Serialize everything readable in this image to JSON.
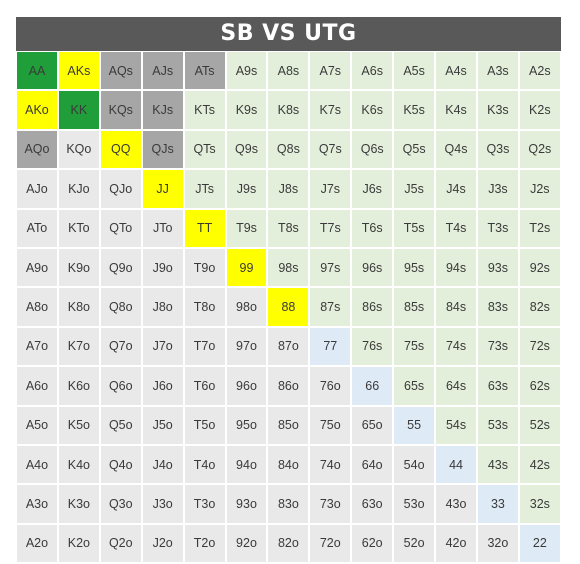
{
  "title": "SB VS UTG",
  "colors": {
    "green": "#1f9e3a",
    "yellow": "#ffff00",
    "gray": "#a6a6a6",
    "fold": "#e9e9e9",
    "suited": "#e3efdb",
    "pair": "#deebf7"
  },
  "grid": [
    [
      {
        "label": "AA",
        "color": "green"
      },
      {
        "label": "AKs",
        "color": "yellow"
      },
      {
        "label": "AQs",
        "color": "gray"
      },
      {
        "label": "AJs",
        "color": "gray"
      },
      {
        "label": "ATs",
        "color": "gray"
      },
      {
        "label": "A9s",
        "color": "suited"
      },
      {
        "label": "A8s",
        "color": "suited"
      },
      {
        "label": "A7s",
        "color": "suited"
      },
      {
        "label": "A6s",
        "color": "suited"
      },
      {
        "label": "A5s",
        "color": "suited"
      },
      {
        "label": "A4s",
        "color": "suited"
      },
      {
        "label": "A3s",
        "color": "suited"
      },
      {
        "label": "A2s",
        "color": "suited"
      }
    ],
    [
      {
        "label": "AKo",
        "color": "yellow"
      },
      {
        "label": "KK",
        "color": "green"
      },
      {
        "label": "KQs",
        "color": "gray"
      },
      {
        "label": "KJs",
        "color": "gray"
      },
      {
        "label": "KTs",
        "color": "suited"
      },
      {
        "label": "K9s",
        "color": "suited"
      },
      {
        "label": "K8s",
        "color": "suited"
      },
      {
        "label": "K7s",
        "color": "suited"
      },
      {
        "label": "K6s",
        "color": "suited"
      },
      {
        "label": "K5s",
        "color": "suited"
      },
      {
        "label": "K4s",
        "color": "suited"
      },
      {
        "label": "K3s",
        "color": "suited"
      },
      {
        "label": "K2s",
        "color": "suited"
      }
    ],
    [
      {
        "label": "AQo",
        "color": "gray"
      },
      {
        "label": "KQo",
        "color": "fold"
      },
      {
        "label": "QQ",
        "color": "yellow"
      },
      {
        "label": "QJs",
        "color": "gray"
      },
      {
        "label": "QTs",
        "color": "suited"
      },
      {
        "label": "Q9s",
        "color": "suited"
      },
      {
        "label": "Q8s",
        "color": "suited"
      },
      {
        "label": "Q7s",
        "color": "suited"
      },
      {
        "label": "Q6s",
        "color": "suited"
      },
      {
        "label": "Q5s",
        "color": "suited"
      },
      {
        "label": "Q4s",
        "color": "suited"
      },
      {
        "label": "Q3s",
        "color": "suited"
      },
      {
        "label": "Q2s",
        "color": "suited"
      }
    ],
    [
      {
        "label": "AJo",
        "color": "fold"
      },
      {
        "label": "KJo",
        "color": "fold"
      },
      {
        "label": "QJo",
        "color": "fold"
      },
      {
        "label": "JJ",
        "color": "yellow"
      },
      {
        "label": "JTs",
        "color": "suited"
      },
      {
        "label": "J9s",
        "color": "suited"
      },
      {
        "label": "J8s",
        "color": "suited"
      },
      {
        "label": "J7s",
        "color": "suited"
      },
      {
        "label": "J6s",
        "color": "suited"
      },
      {
        "label": "J5s",
        "color": "suited"
      },
      {
        "label": "J4s",
        "color": "suited"
      },
      {
        "label": "J3s",
        "color": "suited"
      },
      {
        "label": "J2s",
        "color": "suited"
      }
    ],
    [
      {
        "label": "ATo",
        "color": "fold"
      },
      {
        "label": "KTo",
        "color": "fold"
      },
      {
        "label": "QTo",
        "color": "fold"
      },
      {
        "label": "JTo",
        "color": "fold"
      },
      {
        "label": "TT",
        "color": "yellow"
      },
      {
        "label": "T9s",
        "color": "suited"
      },
      {
        "label": "T8s",
        "color": "suited"
      },
      {
        "label": "T7s",
        "color": "suited"
      },
      {
        "label": "T6s",
        "color": "suited"
      },
      {
        "label": "T5s",
        "color": "suited"
      },
      {
        "label": "T4s",
        "color": "suited"
      },
      {
        "label": "T3s",
        "color": "suited"
      },
      {
        "label": "T2s",
        "color": "suited"
      }
    ],
    [
      {
        "label": "A9o",
        "color": "fold"
      },
      {
        "label": "K9o",
        "color": "fold"
      },
      {
        "label": "Q9o",
        "color": "fold"
      },
      {
        "label": "J9o",
        "color": "fold"
      },
      {
        "label": "T9o",
        "color": "fold"
      },
      {
        "label": "99",
        "color": "yellow"
      },
      {
        "label": "98s",
        "color": "suited"
      },
      {
        "label": "97s",
        "color": "suited"
      },
      {
        "label": "96s",
        "color": "suited"
      },
      {
        "label": "95s",
        "color": "suited"
      },
      {
        "label": "94s",
        "color": "suited"
      },
      {
        "label": "93s",
        "color": "suited"
      },
      {
        "label": "92s",
        "color": "suited"
      }
    ],
    [
      {
        "label": "A8o",
        "color": "fold"
      },
      {
        "label": "K8o",
        "color": "fold"
      },
      {
        "label": "Q8o",
        "color": "fold"
      },
      {
        "label": "J8o",
        "color": "fold"
      },
      {
        "label": "T8o",
        "color": "fold"
      },
      {
        "label": "98o",
        "color": "fold"
      },
      {
        "label": "88",
        "color": "yellow"
      },
      {
        "label": "87s",
        "color": "suited"
      },
      {
        "label": "86s",
        "color": "suited"
      },
      {
        "label": "85s",
        "color": "suited"
      },
      {
        "label": "84s",
        "color": "suited"
      },
      {
        "label": "83s",
        "color": "suited"
      },
      {
        "label": "82s",
        "color": "suited"
      }
    ],
    [
      {
        "label": "A7o",
        "color": "fold"
      },
      {
        "label": "K7o",
        "color": "fold"
      },
      {
        "label": "Q7o",
        "color": "fold"
      },
      {
        "label": "J7o",
        "color": "fold"
      },
      {
        "label": "T7o",
        "color": "fold"
      },
      {
        "label": "97o",
        "color": "fold"
      },
      {
        "label": "87o",
        "color": "fold"
      },
      {
        "label": "77",
        "color": "pair"
      },
      {
        "label": "76s",
        "color": "suited"
      },
      {
        "label": "75s",
        "color": "suited"
      },
      {
        "label": "74s",
        "color": "suited"
      },
      {
        "label": "73s",
        "color": "suited"
      },
      {
        "label": "72s",
        "color": "suited"
      }
    ],
    [
      {
        "label": "A6o",
        "color": "fold"
      },
      {
        "label": "K6o",
        "color": "fold"
      },
      {
        "label": "Q6o",
        "color": "fold"
      },
      {
        "label": "J6o",
        "color": "fold"
      },
      {
        "label": "T6o",
        "color": "fold"
      },
      {
        "label": "96o",
        "color": "fold"
      },
      {
        "label": "86o",
        "color": "fold"
      },
      {
        "label": "76o",
        "color": "fold"
      },
      {
        "label": "66",
        "color": "pair"
      },
      {
        "label": "65s",
        "color": "suited"
      },
      {
        "label": "64s",
        "color": "suited"
      },
      {
        "label": "63s",
        "color": "suited"
      },
      {
        "label": "62s",
        "color": "suited"
      }
    ],
    [
      {
        "label": "A5o",
        "color": "fold"
      },
      {
        "label": "K5o",
        "color": "fold"
      },
      {
        "label": "Q5o",
        "color": "fold"
      },
      {
        "label": "J5o",
        "color": "fold"
      },
      {
        "label": "T5o",
        "color": "fold"
      },
      {
        "label": "95o",
        "color": "fold"
      },
      {
        "label": "85o",
        "color": "fold"
      },
      {
        "label": "75o",
        "color": "fold"
      },
      {
        "label": "65o",
        "color": "fold"
      },
      {
        "label": "55",
        "color": "pair"
      },
      {
        "label": "54s",
        "color": "suited"
      },
      {
        "label": "53s",
        "color": "suited"
      },
      {
        "label": "52s",
        "color": "suited"
      }
    ],
    [
      {
        "label": "A4o",
        "color": "fold"
      },
      {
        "label": "K4o",
        "color": "fold"
      },
      {
        "label": "Q4o",
        "color": "fold"
      },
      {
        "label": "J4o",
        "color": "fold"
      },
      {
        "label": "T4o",
        "color": "fold"
      },
      {
        "label": "94o",
        "color": "fold"
      },
      {
        "label": "84o",
        "color": "fold"
      },
      {
        "label": "74o",
        "color": "fold"
      },
      {
        "label": "64o",
        "color": "fold"
      },
      {
        "label": "54o",
        "color": "fold"
      },
      {
        "label": "44",
        "color": "pair"
      },
      {
        "label": "43s",
        "color": "suited"
      },
      {
        "label": "42s",
        "color": "suited"
      }
    ],
    [
      {
        "label": "A3o",
        "color": "fold"
      },
      {
        "label": "K3o",
        "color": "fold"
      },
      {
        "label": "Q3o",
        "color": "fold"
      },
      {
        "label": "J3o",
        "color": "fold"
      },
      {
        "label": "T3o",
        "color": "fold"
      },
      {
        "label": "93o",
        "color": "fold"
      },
      {
        "label": "83o",
        "color": "fold"
      },
      {
        "label": "73o",
        "color": "fold"
      },
      {
        "label": "63o",
        "color": "fold"
      },
      {
        "label": "53o",
        "color": "fold"
      },
      {
        "label": "43o",
        "color": "fold"
      },
      {
        "label": "33",
        "color": "pair"
      },
      {
        "label": "32s",
        "color": "suited"
      }
    ],
    [
      {
        "label": "A2o",
        "color": "fold"
      },
      {
        "label": "K2o",
        "color": "fold"
      },
      {
        "label": "Q2o",
        "color": "fold"
      },
      {
        "label": "J2o",
        "color": "fold"
      },
      {
        "label": "T2o",
        "color": "fold"
      },
      {
        "label": "92o",
        "color": "fold"
      },
      {
        "label": "82o",
        "color": "fold"
      },
      {
        "label": "72o",
        "color": "fold"
      },
      {
        "label": "62o",
        "color": "fold"
      },
      {
        "label": "52o",
        "color": "fold"
      },
      {
        "label": "42o",
        "color": "fold"
      },
      {
        "label": "32o",
        "color": "fold"
      },
      {
        "label": "22",
        "color": "pair"
      }
    ]
  ]
}
